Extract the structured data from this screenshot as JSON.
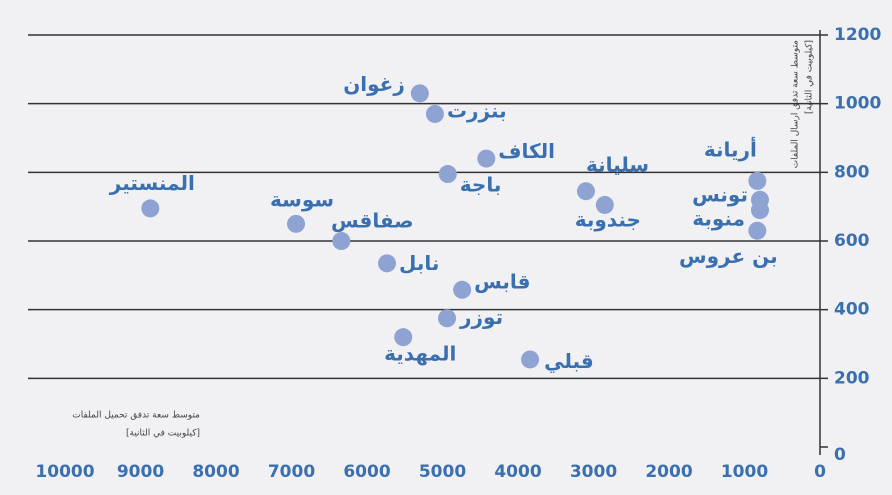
{
  "chart_data": {
    "type": "scatter",
    "x_label": [
      "متوسط سعة تدفق تحميل الملفات",
      "[كيلوبيت في الثانية]"
    ],
    "y_label": [
      "متوسط سعة تدفق ارسال الملفات",
      "[كيلوبيت في الثانية]"
    ],
    "color": "#8ea3d2",
    "points": [
      {
        "label": "زغوان",
        "x": 5300,
        "y": 1030
      },
      {
        "label": "بنزرت",
        "x": 5100,
        "y": 970
      },
      {
        "label": "الكاف",
        "x": 4420,
        "y": 840
      },
      {
        "label": "باجة",
        "x": 4930,
        "y": 795
      },
      {
        "label": "سليانة",
        "x": 3100,
        "y": 745
      },
      {
        "label": "جندوبة",
        "x": 2850,
        "y": 705
      },
      {
        "label": "أريانة",
        "x": 830,
        "y": 775
      },
      {
        "label": "تونس",
        "x": 795,
        "y": 720
      },
      {
        "label": "منوبة",
        "x": 795,
        "y": 690
      },
      {
        "label": "بن عروس",
        "x": 830,
        "y": 630
      },
      {
        "label": "المنستير",
        "x": 8870,
        "y": 695
      },
      {
        "label": "سوسة",
        "x": 6940,
        "y": 650
      },
      {
        "label": "صفاقس",
        "x": 6340,
        "y": 600
      },
      {
        "label": "نابل",
        "x": 5735,
        "y": 535
      },
      {
        "label": "قابس",
        "x": 4740,
        "y": 458
      },
      {
        "label": "توزر",
        "x": 4940,
        "y": 375
      },
      {
        "label": "المهدية",
        "x": 5520,
        "y": 320
      },
      {
        "label": "قبلي",
        "x": 3840,
        "y": 255
      }
    ],
    "xlim": [
      10000,
      0
    ],
    "xticks": [
      10000,
      9000,
      8000,
      7000,
      6000,
      5000,
      4000,
      3000,
      2000,
      1000,
      0
    ],
    "ylim": [
      0,
      1200
    ],
    "yticks": [
      0,
      200,
      400,
      600,
      800,
      1000,
      1200
    ],
    "grid": true
  }
}
